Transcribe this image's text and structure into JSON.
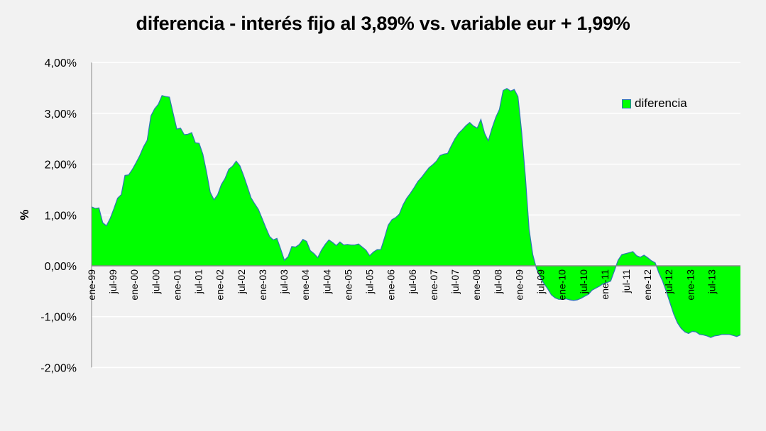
{
  "chart_data": {
    "type": "area",
    "title": "diferencia - interés fijo al 3,89% vs. variable eur + 1,99%",
    "xlabel": "",
    "ylabel": "%",
    "ylim": [
      -2.0,
      4.0
    ],
    "yticks": [
      "4,00%",
      "3,00%",
      "2,00%",
      "1,00%",
      "0,00%",
      "-1,00%",
      "-2,00%"
    ],
    "ytick_values": [
      4,
      3,
      2,
      1,
      0,
      -1,
      -2
    ],
    "grid": "horizontal",
    "legend_position": "upper right (inside plot)",
    "categories": [
      "ene-99",
      "jul-99",
      "ene-00",
      "jul-00",
      "ene-01",
      "jul-01",
      "ene-02",
      "jul-02",
      "ene-03",
      "jul-03",
      "ene-04",
      "jul-04",
      "ene-05",
      "jul-05",
      "ene-06",
      "jul-06",
      "ene-07",
      "jul-07",
      "ene-08",
      "jul-08",
      "ene-09",
      "jul-09",
      "ene-10",
      "jul-10",
      "ene-11",
      "jul-11",
      "ene-12",
      "jul-12",
      "ene-13",
      "jul-13"
    ],
    "series": [
      {
        "name": "diferencia",
        "color": "#00ff00",
        "line_color": "#2e75b6",
        "frequency": "monthly, ene-99 to dic-13",
        "values": [
          1.16,
          1.13,
          1.14,
          0.85,
          0.79,
          0.93,
          1.12,
          1.33,
          1.4,
          1.78,
          1.79,
          1.9,
          2.03,
          2.17,
          2.34,
          2.47,
          2.95,
          3.09,
          3.18,
          3.35,
          3.33,
          3.32,
          3.0,
          2.69,
          2.71,
          2.58,
          2.59,
          2.62,
          2.42,
          2.41,
          2.2,
          1.85,
          1.45,
          1.3,
          1.4,
          1.6,
          1.72,
          1.9,
          1.96,
          2.06,
          1.97,
          1.78,
          1.56,
          1.34,
          1.22,
          1.11,
          0.93,
          0.75,
          0.58,
          0.51,
          0.54,
          0.33,
          0.11,
          0.18,
          0.38,
          0.37,
          0.42,
          0.52,
          0.48,
          0.3,
          0.24,
          0.16,
          0.31,
          0.42,
          0.51,
          0.46,
          0.4,
          0.47,
          0.41,
          0.42,
          0.41,
          0.41,
          0.43,
          0.37,
          0.31,
          0.2,
          0.27,
          0.32,
          0.32,
          0.55,
          0.8,
          0.91,
          0.95,
          1.02,
          1.2,
          1.33,
          1.43,
          1.54,
          1.66,
          1.74,
          1.84,
          1.93,
          1.99,
          2.06,
          2.17,
          2.2,
          2.21,
          2.36,
          2.5,
          2.61,
          2.68,
          2.76,
          2.82,
          2.75,
          2.71,
          2.88,
          2.61,
          2.46,
          2.71,
          2.92,
          3.08,
          3.45,
          3.49,
          3.44,
          3.47,
          3.33,
          2.62,
          1.75,
          0.72,
          0.22,
          -0.06,
          -0.22,
          -0.35,
          -0.45,
          -0.57,
          -0.63,
          -0.66,
          -0.66,
          -0.65,
          -0.67,
          -0.68,
          -0.67,
          -0.64,
          -0.6,
          -0.56,
          -0.48,
          -0.44,
          -0.4,
          -0.35,
          -0.33,
          -0.3,
          -0.1,
          0.11,
          0.22,
          0.24,
          0.26,
          0.28,
          0.2,
          0.17,
          0.21,
          0.16,
          0.1,
          0.06,
          -0.14,
          -0.3,
          -0.5,
          -0.73,
          -0.95,
          -1.12,
          -1.23,
          -1.3,
          -1.33,
          -1.29,
          -1.3,
          -1.35,
          -1.36,
          -1.38,
          -1.41,
          -1.38,
          -1.37,
          -1.35,
          -1.35,
          -1.35,
          -1.37,
          -1.39,
          -1.36
        ]
      }
    ]
  },
  "legend": {
    "label": "diferencia"
  }
}
